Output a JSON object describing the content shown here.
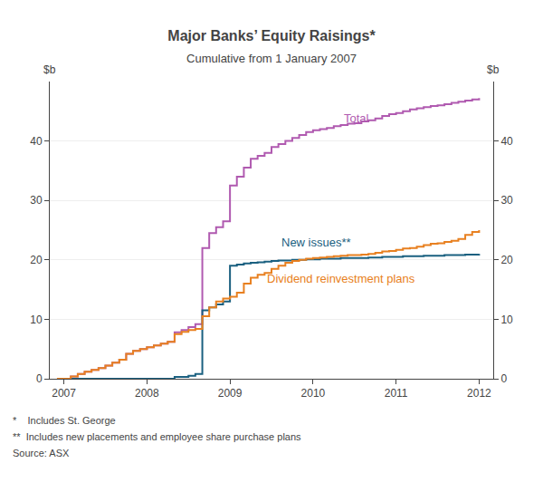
{
  "chart_data": {
    "type": "line",
    "title": "Major Banks’ Equity Raisings*",
    "subtitle": "Cumulative from 1 January 2007",
    "ylabel": "$b",
    "y2label": "$b",
    "footnotes": [
      "*    Includes St. George",
      "**  Includes new placements and employee share purchase plans",
      "Source: ASX"
    ],
    "line_style": "steps-post",
    "grid": "y",
    "x": [
      2006.917,
      2007.0,
      2007.083,
      2007.167,
      2007.25,
      2007.333,
      2007.417,
      2007.5,
      2007.583,
      2007.667,
      2007.75,
      2007.833,
      2007.917,
      2008.0,
      2008.083,
      2008.167,
      2008.25,
      2008.333,
      2008.417,
      2008.5,
      2008.583,
      2008.667,
      2008.75,
      2008.833,
      2008.917,
      2009.0,
      2009.083,
      2009.167,
      2009.25,
      2009.333,
      2009.417,
      2009.5,
      2009.583,
      2009.667,
      2009.75,
      2009.833,
      2009.917,
      2010.0,
      2010.083,
      2010.167,
      2010.25,
      2010.333,
      2010.417,
      2010.5,
      2010.583,
      2010.667,
      2010.75,
      2010.833,
      2010.917,
      2011.0,
      2011.083,
      2011.167,
      2011.25,
      2011.333,
      2011.417,
      2011.5,
      2011.583,
      2011.667,
      2011.75,
      2011.833,
      2011.917,
      2012.0
    ],
    "series": [
      {
        "name": "Total",
        "color": "#b05ab0",
        "values": [
          0.0,
          0.0,
          0.4,
          0.8,
          1.2,
          1.5,
          1.8,
          2.2,
          2.7,
          3.2,
          4.2,
          4.7,
          5.0,
          5.3,
          5.6,
          5.9,
          6.2,
          7.8,
          8.2,
          8.7,
          9.2,
          22.0,
          24.5,
          25.5,
          26.5,
          32.5,
          34.0,
          35.5,
          37.0,
          37.5,
          38.0,
          39.0,
          39.5,
          40.0,
          40.5,
          41.0,
          41.5,
          41.8,
          42.0,
          42.2,
          42.5,
          42.7,
          42.9,
          43.0,
          43.3,
          43.5,
          43.8,
          44.2,
          44.5,
          44.7,
          45.0,
          45.3,
          45.5,
          45.7,
          45.9,
          46.0,
          46.2,
          46.4,
          46.6,
          46.8,
          47.0,
          47.2
        ]
      },
      {
        "name": "New issues**",
        "color": "#1a6080",
        "values": [
          0.0,
          0.0,
          0.0,
          0.0,
          0.0,
          0.0,
          0.0,
          0.0,
          0.0,
          0.0,
          0.0,
          0.0,
          0.0,
          0.0,
          0.0,
          0.0,
          0.0,
          0.3,
          0.3,
          0.5,
          0.8,
          11.5,
          12.0,
          12.5,
          13.0,
          19.0,
          19.2,
          19.4,
          19.5,
          19.6,
          19.7,
          19.8,
          19.9,
          19.9,
          20.0,
          20.0,
          20.1,
          20.1,
          20.2,
          20.2,
          20.2,
          20.3,
          20.3,
          20.3,
          20.3,
          20.4,
          20.4,
          20.5,
          20.5,
          20.5,
          20.6,
          20.6,
          20.6,
          20.7,
          20.7,
          20.7,
          20.8,
          20.8,
          20.8,
          20.9,
          20.9,
          21.0
        ]
      },
      {
        "name": "Dividend reinvestment plans",
        "color": "#e88020",
        "values": [
          0.0,
          0.0,
          0.4,
          0.8,
          1.2,
          1.5,
          1.8,
          2.2,
          2.7,
          3.2,
          4.2,
          4.7,
          5.0,
          5.3,
          5.6,
          5.9,
          6.2,
          7.5,
          7.9,
          8.2,
          8.4,
          10.5,
          12.0,
          13.0,
          13.5,
          13.8,
          14.5,
          16.0,
          17.0,
          17.5,
          17.8,
          18.5,
          19.0,
          19.5,
          19.8,
          20.0,
          20.2,
          20.3,
          20.4,
          20.5,
          20.6,
          20.7,
          20.8,
          20.8,
          20.9,
          21.0,
          21.2,
          21.4,
          21.5,
          21.7,
          21.9,
          22.0,
          22.2,
          22.5,
          22.7,
          22.8,
          23.0,
          23.2,
          23.5,
          24.2,
          24.7,
          25.0
        ]
      }
    ],
    "annotations": [
      {
        "text": "Total",
        "x": 2010.35,
        "y": 43.8,
        "color": "#b05ab0"
      },
      {
        "text": "New issues**",
        "x": 2009.6,
        "y": 23.0,
        "color": "#1a6080"
      },
      {
        "text": "Dividend reinvestment plans",
        "x": 2009.42,
        "y": 16.8,
        "color": "#e88020"
      }
    ],
    "xlim": [
      2006.83,
      2012.17
    ],
    "xticks": [
      2007,
      2008,
      2009,
      2010,
      2011,
      2012
    ],
    "ylim": [
      0,
      50
    ],
    "yticks": [
      0,
      10,
      20,
      30,
      40
    ],
    "y2lim": [
      0,
      50
    ],
    "y2ticks": [
      0,
      10,
      20,
      30,
      40
    ]
  }
}
